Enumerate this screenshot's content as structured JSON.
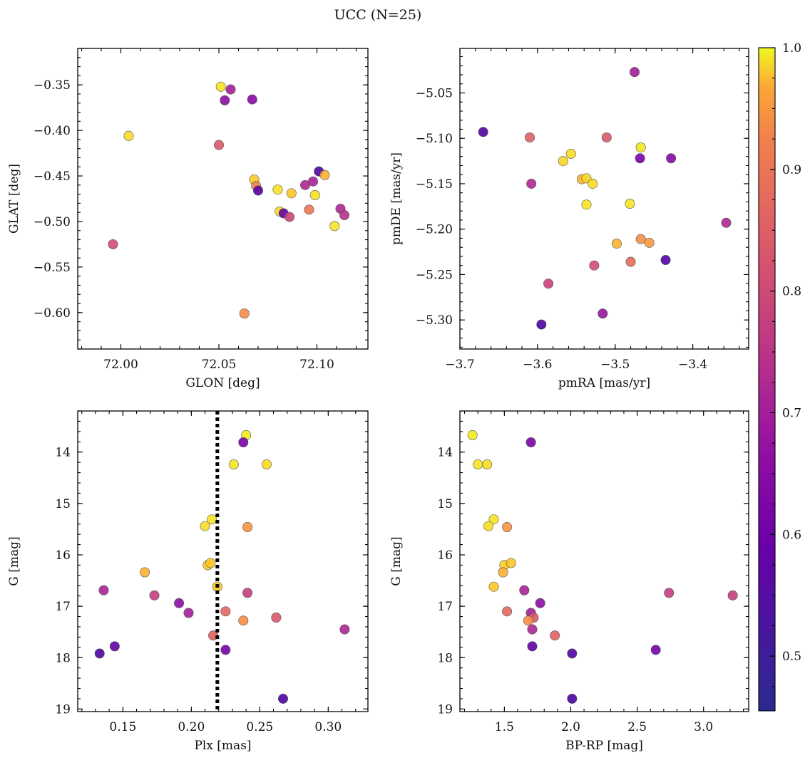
{
  "figure": {
    "suptitle": "UCC (N=25)"
  },
  "chart_data": [
    {
      "id": "position",
      "type": "scatter",
      "xlabel": "GLON [deg]",
      "ylabel": "GLAT [deg]",
      "xlim": [
        71.978,
        72.126
      ],
      "ylim": [
        -0.64,
        -0.31
      ],
      "y_inverted": false,
      "x_ticks": [
        72.0,
        72.05,
        72.1
      ],
      "x_tick_labels": [
        "72.00",
        "72.05",
        "72.10"
      ],
      "y_ticks": [
        -0.35,
        -0.4,
        -0.45,
        -0.5,
        -0.55,
        -0.6
      ],
      "y_tick_labels": [
        "−0.35",
        "−0.40",
        "−0.45",
        "−0.50",
        "−0.55",
        "−0.60"
      ],
      "points": [
        {
          "x": 72.051,
          "y": -0.352,
          "p": 0.97
        },
        {
          "x": 72.056,
          "y": -0.355,
          "p": 0.62
        },
        {
          "x": 72.053,
          "y": -0.367,
          "p": 0.58
        },
        {
          "x": 72.067,
          "y": -0.366,
          "p": 0.57
        },
        {
          "x": 72.004,
          "y": -0.406,
          "p": 0.96
        },
        {
          "x": 72.05,
          "y": -0.416,
          "p": 0.74
        },
        {
          "x": 72.068,
          "y": -0.454,
          "p": 0.94
        },
        {
          "x": 72.069,
          "y": -0.461,
          "p": 0.82
        },
        {
          "x": 72.07,
          "y": -0.466,
          "p": 0.5
        },
        {
          "x": 72.08,
          "y": -0.465,
          "p": 0.97
        },
        {
          "x": 72.087,
          "y": -0.469,
          "p": 0.93
        },
        {
          "x": 72.081,
          "y": -0.489,
          "p": 0.96
        },
        {
          "x": 72.083,
          "y": -0.491,
          "p": 0.51
        },
        {
          "x": 72.086,
          "y": -0.495,
          "p": 0.7
        },
        {
          "x": 72.101,
          "y": -0.445,
          "p": 0.49
        },
        {
          "x": 72.104,
          "y": -0.449,
          "p": 0.9
        },
        {
          "x": 72.098,
          "y": -0.456,
          "p": 0.63
        },
        {
          "x": 72.094,
          "y": -0.46,
          "p": 0.64
        },
        {
          "x": 72.099,
          "y": -0.471,
          "p": 0.97
        },
        {
          "x": 72.096,
          "y": -0.487,
          "p": 0.8
        },
        {
          "x": 72.112,
          "y": -0.486,
          "p": 0.64
        },
        {
          "x": 72.114,
          "y": -0.493,
          "p": 0.66
        },
        {
          "x": 72.109,
          "y": -0.505,
          "p": 0.97
        },
        {
          "x": 71.996,
          "y": -0.525,
          "p": 0.72
        },
        {
          "x": 72.063,
          "y": -0.601,
          "p": 0.84
        }
      ]
    },
    {
      "id": "proper-motion",
      "type": "scatter",
      "xlabel": "pmRA [mas/yr]",
      "ylabel": "pmDE [mas/yr]",
      "xlim": [
        -3.7,
        -3.328
      ],
      "ylim": [
        -5.332,
        -5.001
      ],
      "y_inverted": false,
      "x_ticks": [
        -3.7,
        -3.6,
        -3.5,
        -3.4
      ],
      "x_tick_labels": [
        "−3.7",
        "−3.6",
        "−3.5",
        "−3.4"
      ],
      "y_ticks": [
        -5.05,
        -5.1,
        -5.15,
        -5.2,
        -5.25,
        -5.3
      ],
      "y_tick_labels": [
        "−5.05",
        "−5.10",
        "−5.15",
        "−5.20",
        "−5.25",
        "−5.30"
      ],
      "points": [
        {
          "x": -3.475,
          "y": -5.027,
          "p": 0.62
        },
        {
          "x": -3.67,
          "y": -5.093,
          "p": 0.49
        },
        {
          "x": -3.61,
          "y": -5.099,
          "p": 0.76
        },
        {
          "x": -3.511,
          "y": -5.099,
          "p": 0.74
        },
        {
          "x": -3.467,
          "y": -5.11,
          "p": 0.97
        },
        {
          "x": -3.557,
          "y": -5.117,
          "p": 0.96
        },
        {
          "x": -3.567,
          "y": -5.125,
          "p": 0.95
        },
        {
          "x": -3.468,
          "y": -5.122,
          "p": 0.55
        },
        {
          "x": -3.428,
          "y": -5.122,
          "p": 0.57
        },
        {
          "x": -3.608,
          "y": -5.15,
          "p": 0.64
        },
        {
          "x": -3.543,
          "y": -5.145,
          "p": 0.9
        },
        {
          "x": -3.537,
          "y": -5.144,
          "p": 0.95
        },
        {
          "x": -3.529,
          "y": -5.15,
          "p": 0.96
        },
        {
          "x": -3.537,
          "y": -5.173,
          "p": 0.97
        },
        {
          "x": -3.481,
          "y": -5.172,
          "p": 0.97
        },
        {
          "x": -3.357,
          "y": -5.193,
          "p": 0.64
        },
        {
          "x": -3.467,
          "y": -5.211,
          "p": 0.84
        },
        {
          "x": -3.456,
          "y": -5.215,
          "p": 0.86
        },
        {
          "x": -3.498,
          "y": -5.216,
          "p": 0.9
        },
        {
          "x": -3.48,
          "y": -5.236,
          "p": 0.78
        },
        {
          "x": -3.435,
          "y": -5.234,
          "p": 0.49
        },
        {
          "x": -3.527,
          "y": -5.24,
          "p": 0.72
        },
        {
          "x": -3.586,
          "y": -5.26,
          "p": 0.7
        },
        {
          "x": -3.516,
          "y": -5.293,
          "p": 0.6
        },
        {
          "x": -3.595,
          "y": -5.305,
          "p": 0.48
        }
      ]
    },
    {
      "id": "plx-mag",
      "type": "scatter",
      "xlabel": "Plx [mas]",
      "ylabel": "G [mag]",
      "xlim": [
        0.117,
        0.329
      ],
      "ylim": [
        13.2,
        19.05
      ],
      "y_inverted": true,
      "x_ticks": [
        0.15,
        0.2,
        0.25,
        0.3
      ],
      "x_tick_labels": [
        "0.15",
        "0.20",
        "0.25",
        "0.30"
      ],
      "y_ticks": [
        14,
        15,
        16,
        17,
        18,
        19
      ],
      "y_tick_labels": [
        "14",
        "15",
        "16",
        "17",
        "18",
        "19"
      ],
      "vline": {
        "x": 0.219,
        "style": "dotted",
        "color": "#000000"
      },
      "points": [
        {
          "x": 0.24,
          "y": 13.67,
          "p": 0.98
        },
        {
          "x": 0.238,
          "y": 13.81,
          "p": 0.55
        },
        {
          "x": 0.231,
          "y": 14.24,
          "p": 0.97
        },
        {
          "x": 0.255,
          "y": 14.24,
          "p": 0.96
        },
        {
          "x": 0.215,
          "y": 15.31,
          "p": 0.97
        },
        {
          "x": 0.21,
          "y": 15.44,
          "p": 0.96
        },
        {
          "x": 0.241,
          "y": 15.46,
          "p": 0.85
        },
        {
          "x": 0.212,
          "y": 16.2,
          "p": 0.94
        },
        {
          "x": 0.214,
          "y": 16.16,
          "p": 0.93
        },
        {
          "x": 0.166,
          "y": 16.34,
          "p": 0.9
        },
        {
          "x": 0.219,
          "y": 16.62,
          "p": 0.93
        },
        {
          "x": 0.136,
          "y": 16.69,
          "p": 0.63
        },
        {
          "x": 0.173,
          "y": 16.79,
          "p": 0.69
        },
        {
          "x": 0.241,
          "y": 16.74,
          "p": 0.69
        },
        {
          "x": 0.191,
          "y": 16.94,
          "p": 0.58
        },
        {
          "x": 0.198,
          "y": 17.13,
          "p": 0.62
        },
        {
          "x": 0.225,
          "y": 17.1,
          "p": 0.77
        },
        {
          "x": 0.262,
          "y": 17.22,
          "p": 0.74
        },
        {
          "x": 0.238,
          "y": 17.28,
          "p": 0.84
        },
        {
          "x": 0.312,
          "y": 17.45,
          "p": 0.64
        },
        {
          "x": 0.216,
          "y": 17.57,
          "p": 0.76
        },
        {
          "x": 0.144,
          "y": 17.78,
          "p": 0.51
        },
        {
          "x": 0.225,
          "y": 17.85,
          "p": 0.54
        },
        {
          "x": 0.133,
          "y": 17.92,
          "p": 0.49
        },
        {
          "x": 0.267,
          "y": 18.8,
          "p": 0.48
        }
      ]
    },
    {
      "id": "cmd",
      "type": "scatter",
      "xlabel": "BP-RP [mag]",
      "ylabel": "G [mag]",
      "xlim": [
        1.165,
        3.34
      ],
      "ylim": [
        13.2,
        19.05
      ],
      "y_inverted": true,
      "x_ticks": [
        1.5,
        2.0,
        2.5,
        3.0
      ],
      "x_tick_labels": [
        "1.5",
        "2.0",
        "2.5",
        "3.0"
      ],
      "y_ticks": [
        14,
        15,
        16,
        17,
        18,
        19
      ],
      "y_tick_labels": [
        "14",
        "15",
        "16",
        "17",
        "18",
        "19"
      ],
      "points": [
        {
          "x": 1.26,
          "y": 13.67,
          "p": 0.98
        },
        {
          "x": 1.7,
          "y": 13.81,
          "p": 0.55
        },
        {
          "x": 1.3,
          "y": 14.24,
          "p": 0.97
        },
        {
          "x": 1.37,
          "y": 14.24,
          "p": 0.96
        },
        {
          "x": 1.42,
          "y": 15.31,
          "p": 0.97
        },
        {
          "x": 1.38,
          "y": 15.44,
          "p": 0.96
        },
        {
          "x": 1.52,
          "y": 15.46,
          "p": 0.85
        },
        {
          "x": 1.5,
          "y": 16.2,
          "p": 0.94
        },
        {
          "x": 1.55,
          "y": 16.16,
          "p": 0.93
        },
        {
          "x": 1.49,
          "y": 16.34,
          "p": 0.9
        },
        {
          "x": 1.42,
          "y": 16.62,
          "p": 0.93
        },
        {
          "x": 1.65,
          "y": 16.69,
          "p": 0.63
        },
        {
          "x": 3.22,
          "y": 16.79,
          "p": 0.69
        },
        {
          "x": 2.74,
          "y": 16.74,
          "p": 0.69
        },
        {
          "x": 1.77,
          "y": 16.94,
          "p": 0.58
        },
        {
          "x": 1.7,
          "y": 17.13,
          "p": 0.62
        },
        {
          "x": 1.52,
          "y": 17.1,
          "p": 0.77
        },
        {
          "x": 1.72,
          "y": 17.22,
          "p": 0.74
        },
        {
          "x": 1.68,
          "y": 17.28,
          "p": 0.84
        },
        {
          "x": 1.71,
          "y": 17.45,
          "p": 0.64
        },
        {
          "x": 1.88,
          "y": 17.57,
          "p": 0.76
        },
        {
          "x": 1.71,
          "y": 17.78,
          "p": 0.51
        },
        {
          "x": 2.64,
          "y": 17.85,
          "p": 0.54
        },
        {
          "x": 2.01,
          "y": 17.92,
          "p": 0.49
        },
        {
          "x": 2.01,
          "y": 18.8,
          "p": 0.48
        }
      ]
    }
  ],
  "colorbar": {
    "colormap": "plasma",
    "range": [
      0.455,
      1.0
    ],
    "ticks": [
      0.5,
      0.6,
      0.7,
      0.8,
      0.9,
      1.0
    ],
    "tick_labels": [
      "0.5",
      "0.6",
      "0.7",
      "0.8",
      "0.9",
      "1.0"
    ],
    "minor_step": 0.025
  }
}
